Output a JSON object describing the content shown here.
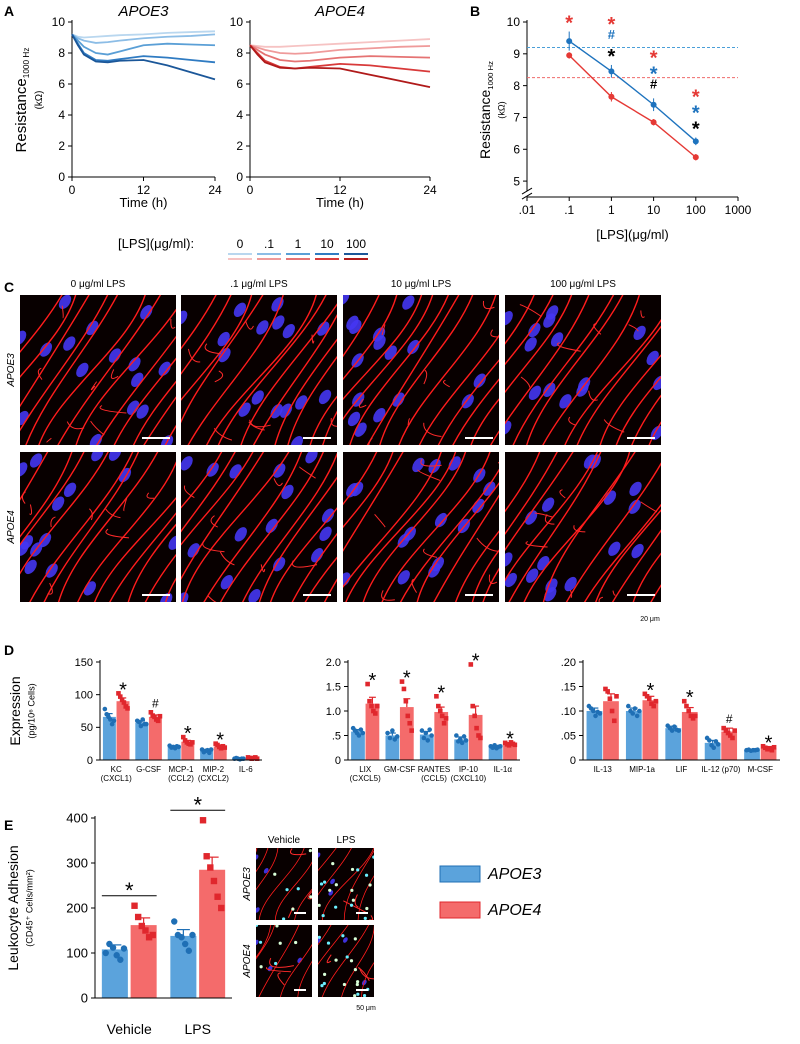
{
  "panel_labels": [
    "A",
    "B",
    "C",
    "D",
    "E"
  ],
  "chart_data": [
    {
      "type": "line",
      "title": "APOE3",
      "x": [
        0,
        1,
        2,
        4,
        6,
        8,
        12,
        16,
        20,
        24
      ],
      "xlim": [
        0,
        24
      ],
      "xticks": [
        0,
        12,
        24
      ],
      "ylim": [
        0,
        10
      ],
      "yticks": [
        0,
        2,
        4,
        6,
        8,
        10
      ],
      "xlabel": "Time (h)",
      "ylabel": "Resistance",
      "ylabel_sub": "1000 Hz",
      "ylabel_unit": "(kΩ)",
      "series": [
        {
          "color": "#b9d7ef",
          "values": [
            9.2,
            9.05,
            9.0,
            9.05,
            9.1,
            9.15,
            9.2,
            9.3,
            9.35,
            9.4
          ]
        },
        {
          "color": "#8cbde6",
          "values": [
            9.2,
            8.95,
            8.8,
            8.65,
            8.7,
            8.8,
            8.95,
            9.05,
            9.1,
            9.2
          ]
        },
        {
          "color": "#5a9fd6",
          "values": [
            9.2,
            8.8,
            8.4,
            8.0,
            7.9,
            8.1,
            8.5,
            8.6,
            8.55,
            8.5
          ]
        },
        {
          "color": "#2f7bc2",
          "values": [
            9.2,
            8.6,
            8.0,
            7.55,
            7.5,
            7.6,
            7.8,
            7.7,
            7.55,
            7.4
          ]
        },
        {
          "color": "#1b5799",
          "values": [
            9.2,
            8.5,
            7.9,
            7.45,
            7.4,
            7.5,
            7.55,
            7.2,
            6.75,
            6.3
          ]
        }
      ]
    },
    {
      "type": "line",
      "title": "APOE4",
      "x": [
        0,
        1,
        2,
        4,
        6,
        8,
        12,
        16,
        20,
        24
      ],
      "xlim": [
        0,
        24
      ],
      "xticks": [
        0,
        12,
        24
      ],
      "ylim": [
        0,
        10
      ],
      "yticks": [
        0,
        2,
        4,
        6,
        8,
        10
      ],
      "xlabel": "Time (h)",
      "series": [
        {
          "color": "#f6c3c3",
          "values": [
            8.5,
            8.45,
            8.4,
            8.4,
            8.45,
            8.5,
            8.6,
            8.7,
            8.8,
            8.9
          ]
        },
        {
          "color": "#ef9a9a",
          "values": [
            8.5,
            8.35,
            8.2,
            8.0,
            7.95,
            8.0,
            8.2,
            8.3,
            8.4,
            8.45
          ]
        },
        {
          "color": "#e57373",
          "values": [
            8.5,
            8.2,
            7.9,
            7.55,
            7.45,
            7.5,
            7.7,
            7.8,
            7.75,
            7.7
          ]
        },
        {
          "color": "#d83a3a",
          "values": [
            8.5,
            8.0,
            7.5,
            7.1,
            7.0,
            7.1,
            7.3,
            7.2,
            7.0,
            6.8
          ]
        },
        {
          "color": "#b01a1a",
          "values": [
            8.5,
            7.9,
            7.4,
            7.05,
            7.0,
            7.05,
            7.0,
            6.6,
            6.2,
            5.8
          ]
        }
      ]
    },
    {
      "type": "line",
      "log_x": true,
      "y_axis_break": true,
      "x": [
        0.1,
        1,
        10,
        100
      ],
      "xlim": [
        0.01,
        1000
      ],
      "xticks": [
        {
          "value": 0.01,
          "label": ".01"
        },
        {
          "value": 0.1,
          "label": ".1"
        },
        1,
        10,
        100,
        1000
      ],
      "ylim": [
        4.5,
        10
      ],
      "yticks": [
        5,
        6,
        7,
        8,
        9,
        10
      ],
      "xlabel": "[LPS](μg/ml)",
      "ylabel": "Resistance",
      "ylabel_sub": "1000 Hz",
      "ylabel_unit": "(kΩ)",
      "reference_lines": [
        {
          "y": 9.2,
          "color": "#4a9fd8"
        },
        {
          "y": 8.25,
          "color": "#ef6b6b"
        }
      ],
      "series": [
        {
          "color": "#1e73be",
          "values": [
            9.4,
            8.45,
            7.4,
            6.25
          ],
          "errors": [
            0.3,
            0.2,
            0.2,
            0.12
          ]
        },
        {
          "color": "#e53935",
          "values": [
            8.95,
            7.65,
            6.85,
            5.75
          ],
          "errors": [
            0.1,
            0.15,
            0.1,
            0.1
          ]
        }
      ],
      "annotations": [
        {
          "x": 0.1,
          "marks": [
            {
              "text": "*",
              "color": "#e53935"
            }
          ]
        },
        {
          "x": 1,
          "marks": [
            {
              "text": "*",
              "color": "#e53935"
            },
            {
              "text": "#",
              "color": "#1e73be"
            },
            {
              "text": "*",
              "color": "#000000"
            }
          ]
        },
        {
          "x": 10,
          "marks": [
            {
              "text": "*",
              "color": "#e53935"
            },
            {
              "text": "*",
              "color": "#1e73be"
            },
            {
              "text": "#",
              "color": "#000000"
            }
          ]
        },
        {
          "x": 100,
          "marks": [
            {
              "text": "*",
              "color": "#e53935"
            },
            {
              "text": "*",
              "color": "#1e73be"
            },
            {
              "text": "*",
              "color": "#000000"
            }
          ]
        }
      ]
    },
    {
      "type": "bar",
      "ylim": [
        0,
        150
      ],
      "yticks": [
        0,
        50,
        100,
        150
      ],
      "ylabel": "Expression",
      "ylabel_unit": "(pg/10⁶ Cells)",
      "categories": [
        [
          "KC",
          "(CXCL1)"
        ],
        [
          "G-CSF"
        ],
        [
          "MCP-1",
          "(CCL2)"
        ],
        [
          "MIP-2",
          "(CXCL2)"
        ],
        [
          "IL-6"
        ]
      ],
      "significance": [
        "*",
        "#",
        "*",
        "*",
        null
      ],
      "series": [
        {
          "color": "#5ba3dc",
          "point_color": "#1f6fb5",
          "marker": "circle",
          "values": [
            66,
            57,
            20,
            14,
            2
          ],
          "errors": [
            5,
            3,
            1.5,
            1.5,
            0.4
          ],
          "points": [
            [
              78,
              70,
              66,
              62,
              55,
              60
            ],
            [
              60,
              58,
              52,
              62,
              55,
              55
            ],
            [
              22,
              19,
              20,
              18,
              21,
              20
            ],
            [
              16,
              12,
              14,
              15,
              11,
              16
            ],
            [
              2,
              3,
              2,
              1,
              2,
              2
            ]
          ]
        },
        {
          "color": "#f46b6b",
          "point_color": "#e0272d",
          "marker": "square",
          "values": [
            90,
            66,
            28,
            21,
            3
          ],
          "errors": [
            5,
            3,
            2,
            2,
            0.6
          ],
          "points": [
            [
              102,
              97,
              92,
              88,
              82,
              79
            ],
            [
              73,
              68,
              66,
              62,
              60,
              67
            ],
            [
              35,
              30,
              27,
              25,
              24,
              27
            ],
            [
              25,
              23,
              20,
              18,
              21,
              19
            ],
            [
              4,
              3,
              2,
              3,
              4,
              2
            ]
          ]
        }
      ]
    },
    {
      "type": "bar",
      "ylim": [
        0,
        2
      ],
      "yticks": [
        0,
        {
          "value": 0.5,
          "label": ".5"
        },
        {
          "value": 1,
          "label": "1.0"
        },
        {
          "value": 1.5,
          "label": "1.5"
        },
        {
          "value": 2,
          "label": "2.0"
        }
      ],
      "categories": [
        [
          "LIX",
          "(CXCL5)"
        ],
        [
          "GM-CSF"
        ],
        [
          "RANTES",
          "(CCL5)"
        ],
        [
          "IP-10",
          "(CXCL10)"
        ],
        [
          "IL-1α"
        ]
      ],
      "significance": [
        "*",
        "*",
        "*",
        "*",
        "*"
      ],
      "series": [
        {
          "color": "#5ba3dc",
          "point_color": "#1f6fb5",
          "marker": "circle",
          "values": [
            0.58,
            0.5,
            0.52,
            0.42,
            0.27
          ],
          "errors": [
            0.04,
            0.05,
            0.06,
            0.05,
            0.02
          ],
          "points": [
            [
              0.65,
              0.6,
              0.55,
              0.5,
              0.62,
              0.55
            ],
            [
              0.55,
              0.45,
              0.6,
              0.42,
              0.48
            ],
            [
              0.6,
              0.45,
              0.55,
              0.4,
              0.62,
              0.5
            ],
            [
              0.5,
              0.38,
              0.42,
              0.35,
              0.48,
              0.4
            ],
            [
              0.28,
              0.25,
              0.3,
              0.24,
              0.27,
              0.28
            ]
          ]
        },
        {
          "color": "#f46b6b",
          "point_color": "#e0272d",
          "marker": "square",
          "values": [
            1.15,
            1.08,
            0.98,
            0.92,
            0.33
          ],
          "errors": [
            0.13,
            0.17,
            0.1,
            0.18,
            0.02
          ],
          "points": [
            [
              1.55,
              1.2,
              1.1,
              1.0,
              0.95,
              1.1
            ],
            [
              1.6,
              1.45,
              1.2,
              0.9,
              0.75,
              0.6
            ],
            [
              1.3,
              1.1,
              1.0,
              0.9,
              0.75,
              0.85
            ],
            [
              1.95,
              1.1,
              0.9,
              0.65,
              0.5,
              0.45
            ],
            [
              0.35,
              0.32,
              0.3,
              0.36,
              0.33,
              0.31
            ]
          ]
        }
      ]
    },
    {
      "type": "bar",
      "ylim": [
        0,
        0.2
      ],
      "yticks": [
        0,
        {
          "value": 0.05,
          "label": ".05"
        },
        {
          "value": 0.1,
          "label": ".10"
        },
        {
          "value": 0.15,
          "label": ".15"
        },
        {
          "value": 0.2,
          "label": ".20"
        }
      ],
      "categories": [
        [
          "IL-13"
        ],
        [
          "MIP-1a"
        ],
        [
          "LIF"
        ],
        [
          "IL-12 (p70)"
        ],
        [
          "M-CSF"
        ]
      ],
      "significance": [
        null,
        "*",
        "*",
        "#",
        "*"
      ],
      "series": [
        {
          "color": "#5ba3dc",
          "point_color": "#1f6fb5",
          "marker": "circle",
          "values": [
            0.1,
            0.1,
            0.065,
            0.035,
            0.02
          ],
          "errors": [
            0.006,
            0.006,
            0.004,
            0.005,
            0.001
          ],
          "points": [
            [
              0.11,
              0.105,
              0.1,
              0.09,
              0.098,
              0.095
            ],
            [
              0.11,
              0.1,
              0.095,
              0.105,
              0.09,
              0.1
            ],
            [
              0.07,
              0.065,
              0.06,
              0.068,
              0.062,
              0.06
            ],
            [
              0.045,
              0.04,
              0.03,
              0.025,
              0.038,
              0.032
            ],
            [
              0.02,
              0.021,
              0.019,
              0.02,
              0.02,
              0.021
            ]
          ]
        },
        {
          "color": "#f46b6b",
          "point_color": "#e0272d",
          "marker": "square",
          "values": [
            0.12,
            0.122,
            0.098,
            0.058,
            0.024
          ],
          "errors": [
            0.015,
            0.008,
            0.009,
            0.007,
            0.002
          ],
          "points": [
            [
              0.145,
              0.14,
              0.125,
              0.1,
              0.08,
              0.13
            ],
            [
              0.135,
              0.13,
              0.125,
              0.115,
              0.11,
              0.12
            ],
            [
              0.12,
              0.11,
              0.1,
              0.09,
              0.085,
              0.09
            ],
            [
              0.065,
              0.06,
              0.055,
              0.05,
              0.045,
              0.06
            ],
            [
              0.028,
              0.025,
              0.022,
              0.024,
              0.02,
              0.026
            ]
          ]
        }
      ]
    },
    {
      "type": "bar",
      "sig_bracket": true,
      "ylim": [
        0,
        400
      ],
      "yticks": [
        0,
        100,
        200,
        300,
        400
      ],
      "ylabel": "Leukocyte Adhesion",
      "ylabel_unit": "(CD45⁺ Cells/mm²)",
      "categories": [
        "Vehicle",
        "LPS"
      ],
      "significance": [
        "*",
        "*"
      ],
      "series": [
        {
          "name": "APOE3",
          "color": "#5ba3dc",
          "point_color": "#1f6fb5",
          "marker": "circle",
          "values": [
            108,
            138
          ],
          "errors": [
            10,
            14
          ],
          "points": [
            [
              100,
              120,
              112,
              95,
              85,
              110
            ],
            [
              170,
              140,
              135,
              120,
              105,
              140
            ]
          ]
        },
        {
          "name": "APOE4",
          "color": "#f46b6b",
          "point_color": "#e0272d",
          "marker": "square",
          "values": [
            162,
            285
          ],
          "errors": [
            16,
            28
          ],
          "points": [
            [
              205,
              180,
              160,
              150,
              135,
              140
            ],
            [
              395,
              315,
              290,
              260,
              225,
              200
            ]
          ]
        }
      ]
    }
  ],
  "lps_legend": {
    "title": "[LPS](μg/ml):",
    "levels": [
      "0",
      ".1",
      "1",
      "10",
      "100"
    ]
  },
  "micrographs_c": {
    "columns": [
      "0 μg/ml LPS",
      ".1 μg/ml LPS",
      "10 μg/ml LPS",
      "100 μg/ml LPS"
    ],
    "rows": [
      "APOE3",
      "APOE4"
    ],
    "scale_bar": "20 μm"
  },
  "micrographs_e": {
    "columns": [
      "Vehicle",
      "LPS"
    ],
    "rows": [
      "APOE3",
      "APOE4"
    ],
    "scale_bar": "50 μm"
  }
}
